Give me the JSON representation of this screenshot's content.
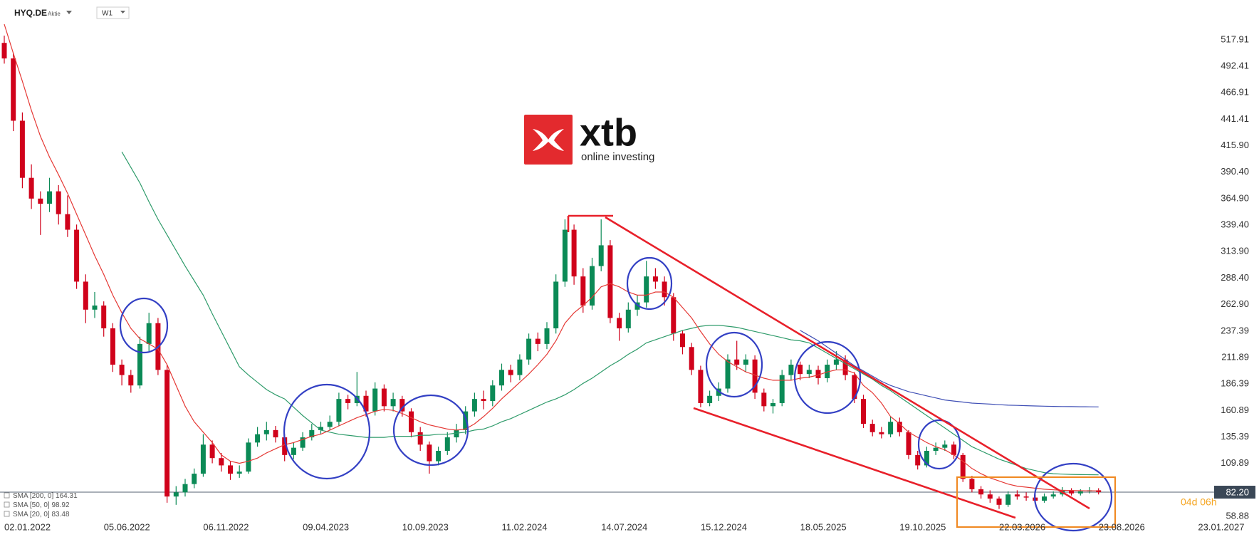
{
  "header": {
    "symbol": "HYQ.DE",
    "instrument_type": "Aktie",
    "interval": "W1"
  },
  "logo": {
    "brand": "xtb",
    "tagline": "online investing"
  },
  "chart_data": {
    "type": "candlestick",
    "categories": [
      "02.01.2022",
      null,
      null,
      null,
      null,
      null,
      null,
      null,
      null,
      null,
      null,
      "05.06.2022",
      null,
      null,
      null,
      null,
      null,
      null,
      null,
      null,
      null,
      null,
      "06.11.2022",
      null,
      null,
      null,
      null,
      null,
      null,
      null,
      null,
      null,
      null,
      "09.04.2023",
      null,
      null,
      null,
      null,
      null,
      null,
      null,
      null,
      null,
      null,
      "10.09.2023",
      null,
      null,
      null,
      null,
      null,
      null,
      null,
      null,
      null,
      null,
      "11.02.2024",
      null,
      null,
      null,
      null,
      null,
      null,
      null,
      null,
      null,
      null,
      "14.07.2024",
      null,
      null,
      null,
      null,
      null,
      null,
      null,
      null,
      null,
      null,
      "15.12.2024",
      null,
      null,
      null,
      null,
      null,
      null,
      null,
      null,
      null,
      null,
      "18.05.2025",
      null,
      null,
      null,
      null,
      null,
      null,
      null,
      null,
      null,
      null,
      "19.10.2025",
      null,
      null,
      null,
      null,
      null,
      null,
      null,
      null,
      null,
      null,
      "22.03.2026",
      null,
      null,
      null,
      null,
      null,
      null,
      null,
      null,
      null,
      null,
      "23.08.2026",
      null,
      null,
      null,
      null,
      null,
      null,
      null,
      null,
      null,
      null,
      "23.01.2027"
    ],
    "ohlc": [
      [
        515,
        522,
        495,
        500
      ],
      [
        500,
        505,
        430,
        440
      ],
      [
        440,
        448,
        375,
        385
      ],
      [
        385,
        398,
        355,
        365
      ],
      [
        365,
        372,
        330,
        360
      ],
      [
        360,
        385,
        352,
        372
      ],
      [
        372,
        378,
        340,
        350
      ],
      [
        350,
        368,
        328,
        335
      ],
      [
        335,
        340,
        278,
        285
      ],
      [
        285,
        292,
        245,
        258
      ],
      [
        258,
        275,
        250,
        262
      ],
      [
        262,
        266,
        232,
        240
      ],
      [
        240,
        245,
        198,
        205
      ],
      [
        205,
        210,
        185,
        195
      ],
      [
        195,
        200,
        178,
        185
      ],
      [
        185,
        232,
        182,
        225
      ],
      [
        225,
        255,
        218,
        245
      ],
      [
        245,
        250,
        195,
        200
      ],
      [
        200,
        205,
        72,
        78
      ],
      [
        78,
        88,
        70,
        82
      ],
      [
        82,
        95,
        78,
        90
      ],
      [
        90,
        105,
        86,
        100
      ],
      [
        100,
        138,
        97,
        128
      ],
      [
        128,
        132,
        110,
        115
      ],
      [
        115,
        120,
        102,
        108
      ],
      [
        108,
        112,
        94,
        100
      ],
      [
        100,
        108,
        96,
        102
      ],
      [
        102,
        134,
        100,
        130
      ],
      [
        130,
        145,
        126,
        138
      ],
      [
        138,
        150,
        132,
        142
      ],
      [
        142,
        146,
        130,
        135
      ],
      [
        135,
        138,
        112,
        118
      ],
      [
        118,
        130,
        114,
        125
      ],
      [
        125,
        140,
        122,
        135
      ],
      [
        135,
        148,
        132,
        142
      ],
      [
        142,
        150,
        138,
        145
      ],
      [
        145,
        156,
        142,
        150
      ],
      [
        150,
        178,
        146,
        172
      ],
      [
        172,
        176,
        162,
        168
      ],
      [
        168,
        198,
        165,
        175
      ],
      [
        175,
        180,
        155,
        160
      ],
      [
        160,
        188,
        156,
        182
      ],
      [
        182,
        186,
        160,
        165
      ],
      [
        165,
        178,
        160,
        172
      ],
      [
        172,
        175,
        155,
        160
      ],
      [
        160,
        163,
        135,
        140
      ],
      [
        140,
        145,
        122,
        128
      ],
      [
        128,
        131,
        100,
        112
      ],
      [
        112,
        126,
        108,
        122
      ],
      [
        122,
        140,
        118,
        135
      ],
      [
        135,
        148,
        130,
        142
      ],
      [
        142,
        165,
        138,
        160
      ],
      [
        160,
        178,
        155,
        172
      ],
      [
        172,
        180,
        162,
        170
      ],
      [
        170,
        190,
        165,
        185
      ],
      [
        185,
        206,
        180,
        200
      ],
      [
        200,
        205,
        188,
        195
      ],
      [
        195,
        215,
        190,
        210
      ],
      [
        210,
        235,
        205,
        230
      ],
      [
        230,
        236,
        218,
        225
      ],
      [
        225,
        246,
        220,
        240
      ],
      [
        240,
        292,
        235,
        285
      ],
      [
        285,
        345,
        280,
        335
      ],
      [
        335,
        340,
        282,
        290
      ],
      [
        290,
        298,
        255,
        262
      ],
      [
        262,
        308,
        258,
        300
      ],
      [
        300,
        345,
        295,
        320
      ],
      [
        320,
        325,
        245,
        250
      ],
      [
        250,
        255,
        228,
        240
      ],
      [
        240,
        265,
        236,
        258
      ],
      [
        258,
        272,
        252,
        265
      ],
      [
        265,
        305,
        260,
        290
      ],
      [
        290,
        298,
        278,
        285
      ],
      [
        285,
        290,
        262,
        270
      ],
      [
        270,
        274,
        228,
        235
      ],
      [
        235,
        238,
        215,
        222
      ],
      [
        222,
        226,
        195,
        200
      ],
      [
        200,
        204,
        164,
        168
      ],
      [
        168,
        180,
        165,
        175
      ],
      [
        175,
        188,
        170,
        182
      ],
      [
        182,
        215,
        178,
        210
      ],
      [
        210,
        228,
        200,
        205
      ],
      [
        205,
        215,
        198,
        210
      ],
      [
        210,
        214,
        172,
        178
      ],
      [
        178,
        182,
        160,
        165
      ],
      [
        165,
        172,
        158,
        168
      ],
      [
        168,
        200,
        165,
        195
      ],
      [
        195,
        210,
        190,
        205
      ],
      [
        205,
        208,
        190,
        196
      ],
      [
        196,
        205,
        192,
        200
      ],
      [
        200,
        204,
        186,
        192
      ],
      [
        192,
        210,
        188,
        205
      ],
      [
        205,
        218,
        200,
        210
      ],
      [
        210,
        214,
        190,
        195
      ],
      [
        195,
        198,
        168,
        172
      ],
      [
        172,
        176,
        144,
        148
      ],
      [
        148,
        152,
        136,
        140
      ],
      [
        140,
        145,
        134,
        138
      ],
      [
        138,
        155,
        135,
        150
      ],
      [
        150,
        154,
        136,
        140
      ],
      [
        140,
        142,
        114,
        118
      ],
      [
        118,
        122,
        104,
        108
      ],
      [
        108,
        126,
        106,
        122
      ],
      [
        122,
        130,
        118,
        125
      ],
      [
        125,
        132,
        122,
        128
      ],
      [
        128,
        131,
        114,
        118
      ],
      [
        118,
        120,
        92,
        95
      ],
      [
        95,
        98,
        82,
        85
      ],
      [
        85,
        88,
        76,
        80
      ],
      [
        80,
        84,
        72,
        76
      ],
      [
        76,
        78,
        66,
        70
      ],
      [
        70,
        83,
        68,
        80
      ],
      [
        80,
        84,
        75,
        78
      ],
      [
        78,
        82,
        74,
        77
      ],
      [
        77,
        80,
        71,
        74
      ],
      [
        74,
        81,
        72,
        78
      ],
      [
        78,
        83,
        76,
        80
      ],
      [
        80,
        87,
        78,
        84
      ],
      [
        84,
        86,
        79,
        81
      ],
      [
        81,
        85,
        79,
        83
      ],
      [
        83,
        87,
        81,
        84
      ],
      [
        84,
        86,
        80,
        82.2
      ],
      null,
      null,
      null,
      null,
      null,
      null,
      null,
      null,
      null,
      null,
      null
    ],
    "colors": {
      "up": "#0b8a56",
      "down": "#d0021b"
    },
    "series": [
      {
        "name": "SMA [200, 0]",
        "color": "#3f4fb5",
        "values": [
          null,
          null,
          null,
          null,
          null,
          null,
          null,
          null,
          null,
          null,
          null,
          null,
          null,
          null,
          null,
          null,
          null,
          null,
          null,
          null,
          null,
          null,
          null,
          null,
          null,
          null,
          null,
          null,
          null,
          null,
          null,
          null,
          null,
          null,
          null,
          null,
          null,
          null,
          null,
          null,
          null,
          null,
          null,
          null,
          null,
          null,
          null,
          null,
          null,
          null,
          null,
          null,
          null,
          null,
          null,
          null,
          null,
          null,
          null,
          null,
          null,
          null,
          null,
          null,
          null,
          null,
          null,
          null,
          null,
          null,
          null,
          null,
          null,
          null,
          null,
          null,
          null,
          null,
          null,
          null,
          null,
          null,
          null,
          null,
          null,
          null,
          null,
          null,
          238,
          233,
          228,
          222,
          216,
          210,
          204,
          199,
          194,
          189,
          185,
          182,
          179,
          177,
          175,
          173,
          171,
          170,
          169,
          168,
          167.5,
          167,
          166.5,
          166,
          165.8,
          165.5,
          165.2,
          165,
          164.8,
          164.7,
          164.6,
          164.5,
          164.4,
          164.31,
          null,
          null,
          null,
          null,
          null,
          null,
          null,
          null,
          null,
          null,
          null
        ]
      },
      {
        "name": "SMA [50, 0]",
        "color": "#2e9b6a",
        "values": [
          null,
          null,
          null,
          null,
          null,
          null,
          null,
          null,
          null,
          null,
          null,
          null,
          null,
          410,
          395,
          380,
          362,
          345,
          330,
          315,
          300,
          286,
          272,
          254,
          237,
          220,
          203,
          195,
          188,
          181,
          176,
          172,
          164,
          156,
          149,
          142,
          140,
          138,
          137,
          136,
          135,
          135,
          135,
          136,
          136,
          136,
          137,
          137,
          138,
          138,
          139,
          140,
          142,
          143,
          146,
          150,
          153,
          157,
          161,
          165,
          169,
          172,
          176,
          181,
          187,
          192,
          198,
          204,
          209,
          215,
          220,
          226,
          229,
          232,
          235,
          238,
          240,
          242,
          243,
          243,
          242,
          241,
          239,
          237,
          235,
          233,
          231,
          229,
          228,
          226,
          221,
          216,
          211,
          206,
          201,
          196,
          191,
          185,
          180,
          174,
          168,
          162,
          156,
          150,
          144,
          138,
          132,
          126,
          122,
          118,
          114,
          111,
          108,
          105,
          103,
          101,
          100,
          99.6,
          99.3,
          99.1,
          99,
          98.92,
          null,
          null,
          null,
          null,
          null,
          null,
          null,
          null,
          null,
          null,
          null
        ]
      },
      {
        "name": "SMA [20, 0]",
        "color": "#e53935",
        "values": [
          533,
          505,
          478,
          450,
          425,
          405,
          388,
          370,
          350,
          330,
          310,
          292,
          272,
          255,
          240,
          230,
          225,
          220,
          205,
          185,
          165,
          150,
          140,
          130,
          118,
          112,
          110,
          112,
          115,
          120,
          124,
          128,
          130,
          133,
          136,
          138,
          142,
          146,
          150,
          154,
          157,
          160,
          162,
          161,
          158,
          154,
          150,
          147,
          145,
          143,
          142,
          143,
          148,
          155,
          163,
          172,
          180,
          188,
          196,
          205,
          215,
          228,
          245,
          255,
          262,
          270,
          280,
          283,
          280,
          275,
          272,
          272,
          275,
          275,
          270,
          260,
          250,
          237,
          225,
          215,
          208,
          203,
          198,
          195,
          192,
          190,
          190,
          190,
          192,
          193,
          195,
          198,
          200,
          200,
          197,
          185,
          178,
          168,
          155,
          148,
          140,
          135,
          130,
          126,
          123,
          118,
          112,
          105,
          100,
          96,
          93,
          90,
          88,
          87,
          86,
          85,
          84.5,
          84,
          83.8,
          83.6,
          83.5,
          83.48,
          null,
          null,
          null,
          null,
          null,
          null,
          null,
          null,
          null,
          null,
          null
        ]
      }
    ],
    "last_price": {
      "value": 82.2,
      "label": "82.20"
    },
    "countdown": "04d 06h",
    "ylim": [
      53.4,
      556.3
    ],
    "yticks": [
      517.91,
      492.41,
      466.91,
      441.41,
      {
        "value": 415.9,
        "label": "415.90"
      },
      {
        "value": 390.4,
        "label": "390.40"
      },
      {
        "value": 364.9,
        "label": "364.90"
      },
      {
        "value": 339.4,
        "label": "339.40"
      },
      {
        "value": 313.9,
        "label": "313.90"
      },
      {
        "value": 288.4,
        "label": "288.40"
      },
      {
        "value": 262.9,
        "label": "262.90"
      },
      237.39,
      211.89,
      186.39,
      160.89,
      135.39,
      109.89,
      58.88
    ]
  }
}
